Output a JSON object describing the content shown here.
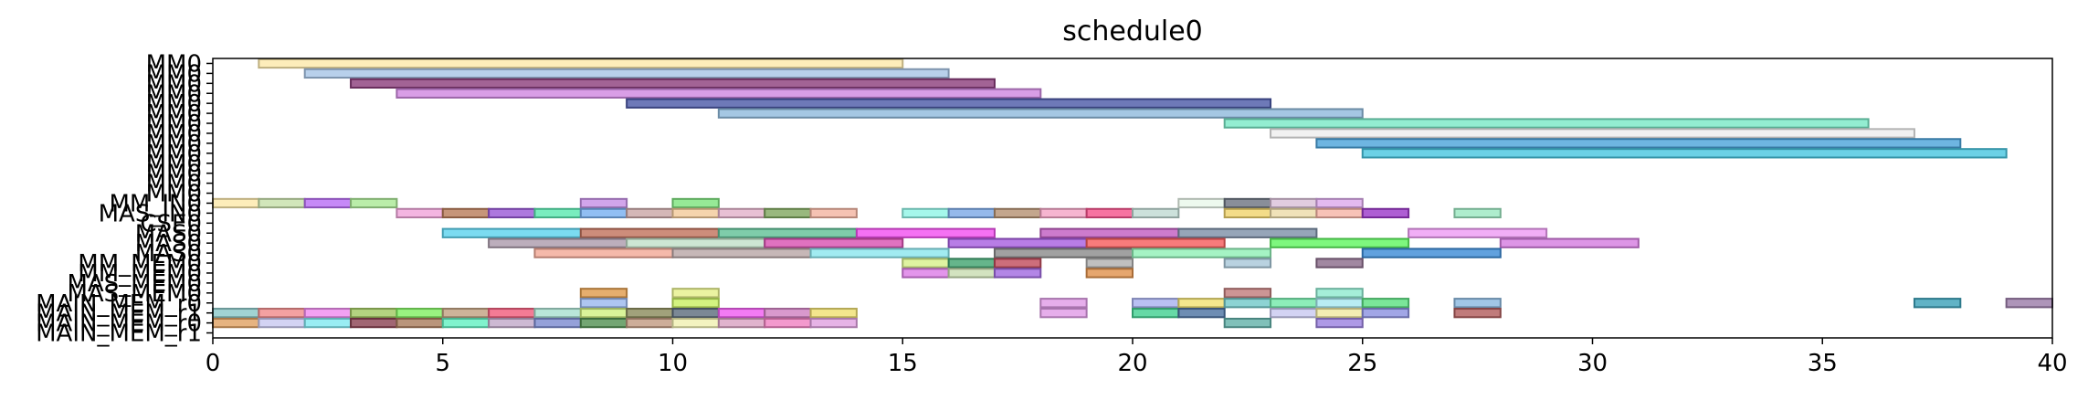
{
  "chart_data": {
    "type": "gantt",
    "title": "schedule0",
    "xlim": [
      0,
      40
    ],
    "x_ticks": [
      0,
      5,
      10,
      15,
      20,
      25,
      30,
      35,
      40
    ],
    "y_tick_labels": [
      "MM0",
      "MM0",
      "MM0",
      "MM0",
      "MM0",
      "MM0",
      "MM0",
      "MM0",
      "MM0",
      "MM0",
      "MM0",
      "MM0",
      "MM0",
      "MM0",
      "MM_IN0",
      "MAS_IN0",
      "CSE0",
      "MAS0",
      "MAS0",
      "MAS0",
      "MM_MEM0",
      "MM_MEM0",
      "MAS_MEM0",
      "MAS_MEM0",
      "MAIN_MEM_r0",
      "MAIN_MEM_r1",
      "MAIN_MEM_r0",
      "MAIN_MEM_r1"
    ],
    "grid": false,
    "legend": "none",
    "rows": [
      {
        "row": 0,
        "bars": [
          {
            "start": 1,
            "end": 15,
            "color": "#fde9a9"
          }
        ]
      },
      {
        "row": 1,
        "bars": [
          {
            "start": 2,
            "end": 16,
            "color": "#a6c4e6"
          }
        ]
      },
      {
        "row": 2,
        "bars": [
          {
            "start": 3,
            "end": 17,
            "color": "#8b3c7a"
          }
        ]
      },
      {
        "row": 3,
        "bars": [
          {
            "start": 4,
            "end": 18,
            "color": "#cf86e0"
          }
        ]
      },
      {
        "row": 4,
        "bars": [
          {
            "start": 9,
            "end": 23,
            "color": "#4a57a6"
          }
        ]
      },
      {
        "row": 5,
        "bars": [
          {
            "start": 11,
            "end": 25,
            "color": "#8eb9dc"
          }
        ]
      },
      {
        "row": 6,
        "bars": [
          {
            "start": 22,
            "end": 36,
            "color": "#78e8c5"
          }
        ]
      },
      {
        "row": 7,
        "bars": [
          {
            "start": 23,
            "end": 37,
            "color": "#eeeeee"
          }
        ]
      },
      {
        "row": 8,
        "bars": [
          {
            "start": 24,
            "end": 38,
            "color": "#4aa3da"
          }
        ]
      },
      {
        "row": 9,
        "bars": [
          {
            "start": 25,
            "end": 39,
            "color": "#47c5e0"
          }
        ]
      },
      {
        "row": 14,
        "bars": [
          {
            "start": 0,
            "end": 1,
            "color": "#fde9a9"
          },
          {
            "start": 1,
            "end": 2,
            "color": "#c6e0a9"
          },
          {
            "start": 2,
            "end": 3,
            "color": "#b86cf5"
          },
          {
            "start": 3,
            "end": 4,
            "color": "#a9e894"
          },
          {
            "start": 8,
            "end": 9,
            "color": "#c78ee6"
          },
          {
            "start": 10,
            "end": 11,
            "color": "#7ce37c"
          },
          {
            "start": 21,
            "end": 22,
            "color": "#e9f7ea"
          },
          {
            "start": 22,
            "end": 23,
            "color": "#6b7280"
          },
          {
            "start": 23,
            "end": 24,
            "color": "#d9bfd8"
          },
          {
            "start": 24,
            "end": 25,
            "color": "#dca8ec"
          }
        ]
      },
      {
        "row": 15,
        "bars": [
          {
            "start": 4,
            "end": 5,
            "color": "#f0a3d9"
          },
          {
            "start": 5,
            "end": 6,
            "color": "#b87a58"
          },
          {
            "start": 6,
            "end": 7,
            "color": "#9856d6"
          },
          {
            "start": 7,
            "end": 8,
            "color": "#58e8ae"
          },
          {
            "start": 8,
            "end": 9,
            "color": "#76aef0"
          },
          {
            "start": 9,
            "end": 10,
            "color": "#c9a5a5"
          },
          {
            "start": 10,
            "end": 11,
            "color": "#f3c998"
          },
          {
            "start": 11,
            "end": 12,
            "color": "#e2b0c9"
          },
          {
            "start": 12,
            "end": 13,
            "color": "#7fa65e"
          },
          {
            "start": 13,
            "end": 14,
            "color": "#f2b3a0"
          },
          {
            "start": 15,
            "end": 16,
            "color": "#8ef5e6"
          },
          {
            "start": 16,
            "end": 17,
            "color": "#7aa8e6"
          },
          {
            "start": 17,
            "end": 18,
            "color": "#b49070"
          },
          {
            "start": 18,
            "end": 19,
            "color": "#f4a3c4"
          },
          {
            "start": 19,
            "end": 20,
            "color": "#f5508a"
          },
          {
            "start": 20,
            "end": 21,
            "color": "#bfd9d2"
          },
          {
            "start": 22,
            "end": 23,
            "color": "#f0d36a"
          },
          {
            "start": 23,
            "end": 24,
            "color": "#ecdba8"
          },
          {
            "start": 24,
            "end": 25,
            "color": "#f6b3a5"
          },
          {
            "start": 25,
            "end": 26,
            "color": "#9a36c8"
          },
          {
            "start": 27,
            "end": 28,
            "color": "#9ae8c0"
          }
        ]
      },
      {
        "row": 17,
        "bars": [
          {
            "start": 5,
            "end": 8,
            "color": "#5ad2ee"
          },
          {
            "start": 8,
            "end": 11,
            "color": "#c0705a"
          },
          {
            "start": 11,
            "end": 14,
            "color": "#5fbf95"
          },
          {
            "start": 14,
            "end": 17,
            "color": "#f34ef0"
          },
          {
            "start": 18,
            "end": 21,
            "color": "#c05ac0"
          },
          {
            "start": 21,
            "end": 24,
            "color": "#7c8ea6"
          },
          {
            "start": 26,
            "end": 29,
            "color": "#ee9af4"
          }
        ]
      },
      {
        "row": 18,
        "bars": [
          {
            "start": 6,
            "end": 9,
            "color": "#ab9aab"
          },
          {
            "start": 9,
            "end": 12,
            "color": "#c1e0c8"
          },
          {
            "start": 12,
            "end": 15,
            "color": "#d84fb0"
          },
          {
            "start": 16,
            "end": 19,
            "color": "#a65ce0"
          },
          {
            "start": 19,
            "end": 22,
            "color": "#f55a5a"
          },
          {
            "start": 23,
            "end": 26,
            "color": "#5ef55e"
          },
          {
            "start": 28,
            "end": 31,
            "color": "#d57ae0"
          }
        ]
      },
      {
        "row": 19,
        "bars": [
          {
            "start": 7,
            "end": 10,
            "color": "#f3a895"
          },
          {
            "start": 10,
            "end": 13,
            "color": "#b8a5a5"
          },
          {
            "start": 13,
            "end": 16,
            "color": "#8ae6ee"
          },
          {
            "start": 17,
            "end": 20,
            "color": "#8a8a8a"
          },
          {
            "start": 20,
            "end": 23,
            "color": "#8ef0b5"
          },
          {
            "start": 25,
            "end": 28,
            "color": "#3a8ad6"
          }
        ]
      },
      {
        "row": 20,
        "bars": [
          {
            "start": 15,
            "end": 16,
            "color": "#d7f08a"
          },
          {
            "start": 16,
            "end": 17,
            "color": "#3fa36e"
          },
          {
            "start": 17,
            "end": 18,
            "color": "#c04a5a"
          },
          {
            "start": 19,
            "end": 20,
            "color": "#b0b0b0"
          },
          {
            "start": 22,
            "end": 23,
            "color": "#a8c7d8"
          },
          {
            "start": 24,
            "end": 25,
            "color": "#8a6a8a"
          }
        ]
      },
      {
        "row": 21,
        "bars": [
          {
            "start": 15,
            "end": 16,
            "color": "#dc7ae6"
          },
          {
            "start": 16,
            "end": 17,
            "color": "#c8dcb0"
          },
          {
            "start": 17,
            "end": 18,
            "color": "#a068e0"
          },
          {
            "start": 19,
            "end": 20,
            "color": "#e0904a"
          }
        ]
      },
      {
        "row": 23,
        "bars": [
          {
            "start": 8,
            "end": 9,
            "color": "#e09a4a"
          },
          {
            "start": 10,
            "end": 11,
            "color": "#e6f08a"
          },
          {
            "start": 22,
            "end": 23,
            "color": "#c07a7a"
          },
          {
            "start": 24,
            "end": 25,
            "color": "#8eead0"
          }
        ]
      },
      {
        "row": 24,
        "bars": [
          {
            "start": 8,
            "end": 9,
            "color": "#9ab8ee"
          },
          {
            "start": 10,
            "end": 11,
            "color": "#c8f060"
          },
          {
            "start": 18,
            "end": 19,
            "color": "#e09ae6"
          },
          {
            "start": 20,
            "end": 21,
            "color": "#a8b0f0"
          },
          {
            "start": 21,
            "end": 22,
            "color": "#f0e070"
          },
          {
            "start": 22,
            "end": 23,
            "color": "#70c8c8"
          },
          {
            "start": 23,
            "end": 24,
            "color": "#70e8a8"
          },
          {
            "start": 24,
            "end": 25,
            "color": "#a8e8f0"
          },
          {
            "start": 25,
            "end": 26,
            "color": "#5ae080"
          },
          {
            "start": 27,
            "end": 28,
            "color": "#8ab8e0"
          },
          {
            "start": 37,
            "end": 38,
            "color": "#3aa0b8"
          },
          {
            "start": 39,
            "end": 40,
            "color": "#9a7aa8"
          }
        ]
      },
      {
        "row": 25,
        "bars": [
          {
            "start": 0,
            "end": 1,
            "color": "#8ac8c8"
          },
          {
            "start": 1,
            "end": 2,
            "color": "#f08a8a"
          },
          {
            "start": 2,
            "end": 3,
            "color": "#f08af0"
          },
          {
            "start": 3,
            "end": 4,
            "color": "#a0c860"
          },
          {
            "start": 4,
            "end": 5,
            "color": "#80f060"
          },
          {
            "start": 5,
            "end": 6,
            "color": "#c0a080"
          },
          {
            "start": 6,
            "end": 7,
            "color": "#f05a7a"
          },
          {
            "start": 7,
            "end": 8,
            "color": "#a8e0d0"
          },
          {
            "start": 8,
            "end": 9,
            "color": "#d0f080"
          },
          {
            "start": 9,
            "end": 10,
            "color": "#8a8a5a"
          },
          {
            "start": 10,
            "end": 11,
            "color": "#5a6a7a"
          },
          {
            "start": 11,
            "end": 12,
            "color": "#f05af0"
          },
          {
            "start": 12,
            "end": 13,
            "color": "#d080c0"
          },
          {
            "start": 13,
            "end": 14,
            "color": "#f0e070"
          },
          {
            "start": 18,
            "end": 19,
            "color": "#e09ae6"
          },
          {
            "start": 20,
            "end": 21,
            "color": "#40d090"
          },
          {
            "start": 21,
            "end": 22,
            "color": "#4a70a0"
          },
          {
            "start": 23,
            "end": 24,
            "color": "#c8c8f0"
          },
          {
            "start": 24,
            "end": 25,
            "color": "#f0e8a0"
          },
          {
            "start": 25,
            "end": 26,
            "color": "#8a90e0"
          },
          {
            "start": 27,
            "end": 28,
            "color": "#b05a5a"
          }
        ]
      },
      {
        "row": 26,
        "bars": [
          {
            "start": 0,
            "end": 1,
            "color": "#e0a060"
          },
          {
            "start": 1,
            "end": 2,
            "color": "#c8c8f0"
          },
          {
            "start": 2,
            "end": 3,
            "color": "#80e8f0"
          },
          {
            "start": 3,
            "end": 4,
            "color": "#8a4050"
          },
          {
            "start": 4,
            "end": 5,
            "color": "#a87a5a"
          },
          {
            "start": 5,
            "end": 6,
            "color": "#60f0c0"
          },
          {
            "start": 6,
            "end": 7,
            "color": "#c0a8c8"
          },
          {
            "start": 7,
            "end": 8,
            "color": "#7a8ad0"
          },
          {
            "start": 8,
            "end": 9,
            "color": "#509050"
          },
          {
            "start": 9,
            "end": 10,
            "color": "#c09880"
          },
          {
            "start": 10,
            "end": 11,
            "color": "#f0f0b0"
          },
          {
            "start": 11,
            "end": 12,
            "color": "#d8a0c0"
          },
          {
            "start": 12,
            "end": 13,
            "color": "#f080c0"
          },
          {
            "start": 13,
            "end": 14,
            "color": "#e0a0e0"
          },
          {
            "start": 22,
            "end": 23,
            "color": "#60b0a8"
          },
          {
            "start": 24,
            "end": 25,
            "color": "#9a80e0"
          }
        ]
      }
    ]
  }
}
